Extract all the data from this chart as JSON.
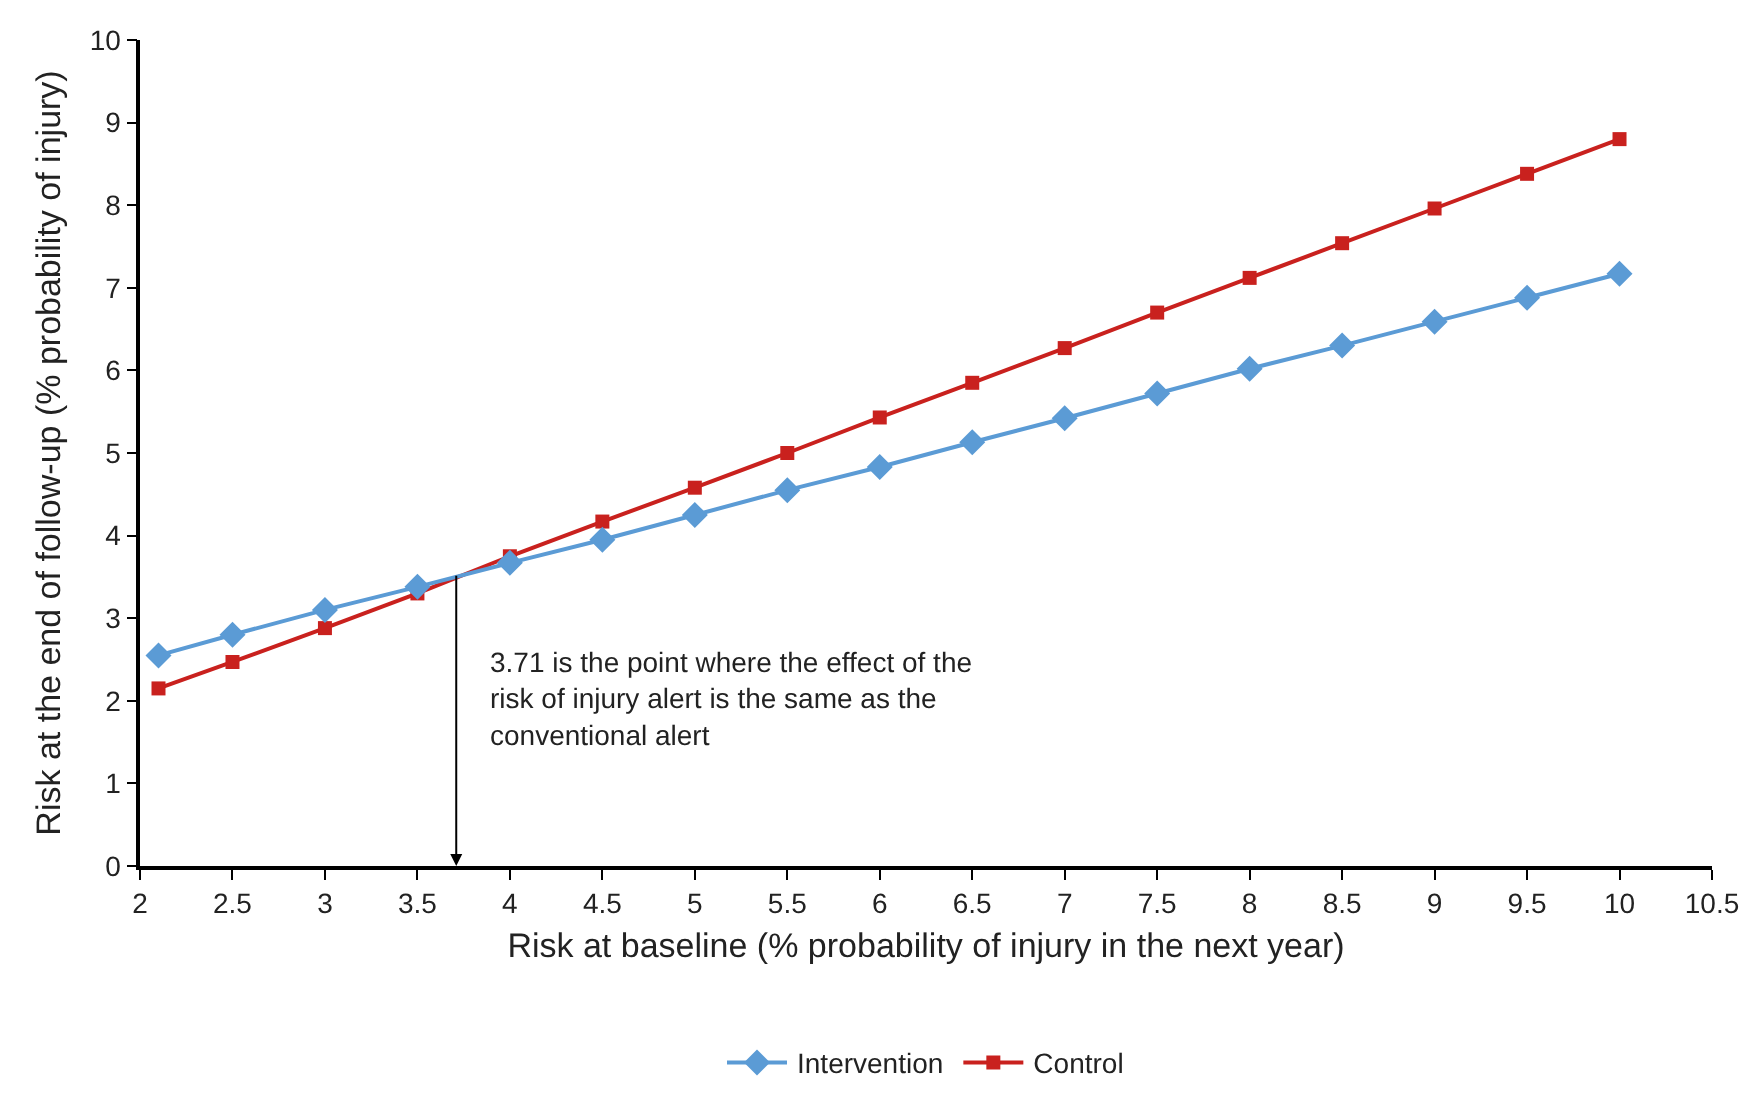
{
  "chart_data": {
    "type": "line",
    "xlabel": "Risk at baseline (% probability of injury in the next year)",
    "ylabel": "Risk at the end of follow-up (% probability of injury)",
    "x": [
      2.1,
      2.5,
      3,
      3.5,
      4,
      4.5,
      5,
      5.5,
      6,
      6.5,
      7,
      7.5,
      8,
      8.5,
      9,
      9.5,
      10
    ],
    "series": [
      {
        "name": "Intervention",
        "color": "#5b9bd5",
        "marker": "diamond",
        "values": [
          2.55,
          2.8,
          3.1,
          3.38,
          3.67,
          3.95,
          4.25,
          4.55,
          4.83,
          5.13,
          5.42,
          5.72,
          6.02,
          6.3,
          6.59,
          6.88,
          7.17
        ]
      },
      {
        "name": "Control",
        "color": "#c9211e",
        "marker": "square",
        "values": [
          2.15,
          2.47,
          2.88,
          3.3,
          3.75,
          4.17,
          4.58,
          5.0,
          5.43,
          5.85,
          6.27,
          6.7,
          7.12,
          7.54,
          7.96,
          8.38,
          8.8
        ]
      }
    ],
    "xlim": [
      2,
      10.5
    ],
    "xticks": [
      2,
      2.5,
      3,
      3.5,
      4,
      4.5,
      5,
      5.5,
      6,
      6.5,
      7,
      7.5,
      8,
      8.5,
      9,
      9.5,
      10,
      10.5
    ],
    "ylim": [
      0,
      10
    ],
    "yticks": [
      0,
      1,
      2,
      3,
      4,
      5,
      6,
      7,
      8,
      9,
      10
    ],
    "annotations": [
      {
        "text": "3.71 is the point where the effect of the\nrisk of injury alert is the same as the\nconventional alert",
        "x": 3.71,
        "y": 3.55
      }
    ],
    "grid": false,
    "legend": "bottom",
    "line_style": "solid"
  }
}
